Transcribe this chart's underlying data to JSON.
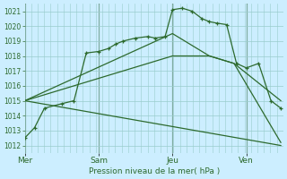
{
  "xlabel": "Pression niveau de la mer( hPa )",
  "bg_color": "#cceeff",
  "grid_color": "#99cccc",
  "line_color": "#2d6a2d",
  "ylim": [
    1011.5,
    1021.5
  ],
  "yticks": [
    1012,
    1013,
    1014,
    1015,
    1016,
    1017,
    1018,
    1019,
    1020,
    1021
  ],
  "day_labels": [
    "Mer",
    "Sam",
    "Jeu",
    "Ven"
  ],
  "vline_x": [
    0.0,
    3.0,
    6.0,
    9.0
  ],
  "xlim": [
    0,
    10.5
  ],
  "series0_x": [
    0.0,
    0.4,
    0.8,
    1.5,
    2.0,
    2.5,
    3.0,
    3.4,
    3.7,
    4.0,
    4.5,
    5.0,
    5.3,
    5.7,
    6.0,
    6.4,
    6.8,
    7.2,
    7.5,
    7.8,
    8.2,
    8.6,
    9.0,
    9.5,
    10.0,
    10.4
  ],
  "series0_y": [
    1012.5,
    1013.2,
    1014.5,
    1014.8,
    1015.0,
    1018.2,
    1018.3,
    1018.5,
    1018.8,
    1019.0,
    1019.2,
    1019.3,
    1019.2,
    1019.3,
    1021.1,
    1021.2,
    1021.0,
    1020.5,
    1020.3,
    1020.2,
    1020.1,
    1017.5,
    1017.2,
    1017.5,
    1015.0,
    1014.5
  ],
  "fan_lines": [
    {
      "x": [
        0.0,
        6.0,
        7.5,
        8.5,
        10.4
      ],
      "y": [
        1015.0,
        1019.5,
        1018.0,
        1017.5,
        1012.2
      ]
    },
    {
      "x": [
        0.0,
        6.0,
        7.5,
        8.5,
        10.4
      ],
      "y": [
        1015.0,
        1018.0,
        1018.0,
        1017.5,
        1015.0
      ]
    },
    {
      "x": [
        0.0,
        10.4
      ],
      "y": [
        1015.0,
        1012.0
      ]
    }
  ]
}
